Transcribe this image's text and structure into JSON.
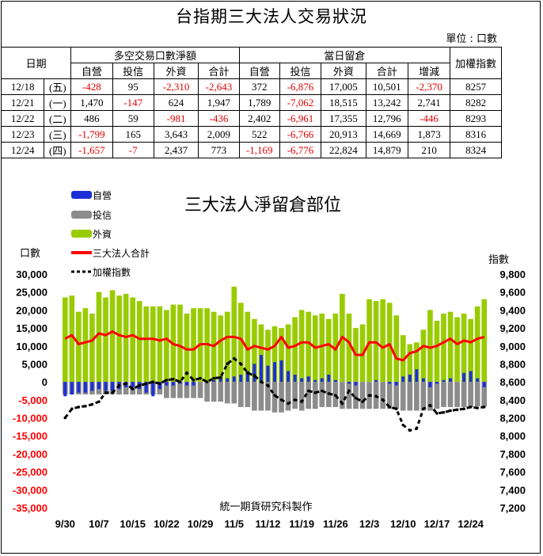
{
  "title": "台指期三大法人交易狀況",
  "unit_label": "單位 : 口數",
  "table": {
    "date_header": "日期",
    "group1_header": "多空交易口數淨額",
    "group2_header": "當日留倉",
    "index_header": "加權指數",
    "sub_headers": [
      "自營",
      "投信",
      "外資",
      "合計",
      "自營",
      "投信",
      "外資",
      "合計",
      "增減"
    ],
    "rows": [
      {
        "date": "12/18",
        "dow": "(五)",
        "cells": [
          "-428",
          "95",
          "-2,310",
          "-2,643",
          "372",
          "-6,876",
          "17,005",
          "10,501",
          "-2,370"
        ],
        "index": "8257"
      },
      {
        "date": "12/21",
        "dow": "(一)",
        "cells": [
          "1,470",
          "-147",
          "624",
          "1,947",
          "1,789",
          "-7,062",
          "18,515",
          "13,242",
          "2,741"
        ],
        "index": "8282"
      },
      {
        "date": "12/22",
        "dow": "(二)",
        "cells": [
          "486",
          "59",
          "-981",
          "-436",
          "2,402",
          "-6,961",
          "17,355",
          "12,796",
          "-446"
        ],
        "index": "8293"
      },
      {
        "date": "12/23",
        "dow": "(三)",
        "cells": [
          "-1,799",
          "165",
          "3,643",
          "2,009",
          "522",
          "-6,766",
          "20,913",
          "14,669",
          "1,873"
        ],
        "index": "8316"
      },
      {
        "date": "12/24",
        "dow": "(四)",
        "cells": [
          "-1,657",
          "-7",
          "2,437",
          "773",
          "-1,169",
          "-6,776",
          "22,824",
          "14,879",
          "210"
        ],
        "index": "8324"
      }
    ]
  },
  "chart_data": {
    "type": "bar",
    "title": "三大法人淨留倉部位",
    "ylabel": "口數",
    "y2label": "指數",
    "credit": "統一期貨研究科製作",
    "legend": [
      "自營",
      "投信",
      "外資",
      "三大法人合計",
      "加權指數"
    ],
    "ylim": [
      -35000,
      30000
    ],
    "y2lim": [
      7200,
      9800
    ],
    "y_ticks": [
      "30,000",
      "25,000",
      "20,000",
      "15,000",
      "10,000",
      "5,000",
      "0",
      "-5,000",
      "-10,000",
      "-15,000",
      "-20,000",
      "-25,000",
      "-30,000",
      "-35,000"
    ],
    "y2_ticks": [
      "9,800",
      "9,600",
      "9,400",
      "9,200",
      "9,000",
      "8,800",
      "8,600",
      "8,400",
      "8,200",
      "8,000",
      "7,800",
      "7,600",
      "7,400",
      "7,200"
    ],
    "x_tick_labels": [
      "9/30",
      "10/7",
      "10/15",
      "10/22",
      "10/29",
      "11/5",
      "11/12",
      "11/19",
      "11/26",
      "12/3",
      "12/10",
      "12/17",
      "12/24"
    ],
    "x_tick_positions": [
      0,
      5,
      10,
      15,
      20,
      25,
      30,
      35,
      40,
      45,
      50,
      55,
      60
    ],
    "colors": {
      "dealer": "#1c2fd6",
      "trust": "#8c8c8c",
      "foreign": "#99cc00",
      "total": "#ff0000",
      "index": "#000000",
      "negative_tick": "#ff0000"
    },
    "series": [
      {
        "name": "自營",
        "values": [
          -4000,
          -3500,
          -3000,
          -3000,
          -2500,
          -2000,
          -2500,
          -2500,
          -2000,
          -1500,
          -1500,
          -2000,
          -3000,
          -4000,
          -2000,
          -1000,
          -1000,
          -500,
          -1000,
          -1000,
          0,
          0,
          500,
          1000,
          1000,
          1500,
          2000,
          3000,
          5000,
          7500,
          4500,
          5500,
          6000,
          3000,
          2000,
          1000,
          1500,
          500,
          1000,
          2000,
          500,
          0,
          -500,
          -1000,
          0,
          0,
          500,
          0,
          -500,
          -1000,
          1500,
          2000,
          3500,
          1000,
          -1500,
          -500,
          500,
          1000,
          0,
          2500,
          3000,
          1000,
          -1500
        ]
      },
      {
        "name": "投信",
        "values": [
          -3500,
          -3500,
          -3500,
          -3500,
          -3500,
          -3500,
          -3500,
          -3500,
          -3500,
          -3500,
          -3500,
          -3500,
          -3500,
          -3500,
          -3500,
          -4500,
          -4500,
          -4500,
          -4500,
          -4500,
          -4500,
          -5500,
          -5500,
          -5500,
          -6000,
          -6000,
          -7000,
          -7000,
          -8000,
          -8000,
          -8000,
          -8500,
          -8500,
          -8000,
          -7500,
          -8000,
          -7500,
          -7500,
          -7000,
          -7000,
          -7000,
          -7500,
          -7500,
          -7500,
          -7500,
          -7500,
          -7500,
          -7500,
          -7500,
          -7500,
          -8000,
          -8000,
          -8000,
          -8000,
          -8000,
          -7500,
          -7000,
          -7000,
          -7000,
          -7000,
          -7000,
          -6800,
          -6800
        ]
      },
      {
        "name": "外資",
        "values": [
          23500,
          24000,
          19500,
          20500,
          19000,
          25000,
          23500,
          25500,
          24000,
          24500,
          23500,
          22500,
          21000,
          21000,
          21000,
          20000,
          21500,
          21500,
          19000,
          20500,
          20500,
          20500,
          19500,
          18500,
          19500,
          26500,
          22000,
          19500,
          17500,
          16000,
          14500,
          15500,
          15000,
          16000,
          18000,
          20000,
          19500,
          18500,
          19000,
          17500,
          19000,
          24500,
          19000,
          15000,
          16000,
          23000,
          22500,
          23000,
          22000,
          18500,
          13000,
          10500,
          11000,
          14500,
          20000,
          17000,
          19000,
          19500,
          18000,
          19000,
          17500,
          21000,
          23000
        ]
      },
      {
        "name": "三大法人合計",
        "values": [
          12000,
          13000,
          10500,
          11000,
          11500,
          13500,
          13000,
          14000,
          13000,
          12500,
          13000,
          12000,
          12000,
          12000,
          11500,
          12000,
          10500,
          10000,
          9000,
          9000,
          10500,
          10500,
          10000,
          11500,
          12500,
          12500,
          12000,
          9000,
          10000,
          9500,
          9000,
          10000,
          12500,
          9500,
          10000,
          11000,
          11000,
          9500,
          10000,
          10500,
          9000,
          12500,
          11000,
          7500,
          7500,
          11000,
          11000,
          9500,
          10500,
          6500,
          6000,
          8000,
          8500,
          10000,
          9500,
          10000,
          11000,
          12000,
          10500,
          11500,
          11000,
          12000,
          12500
        ]
      },
      {
        "name": "加權指數",
        "values": [
          8200,
          8300,
          8320,
          8330,
          8350,
          8380,
          8480,
          8480,
          8560,
          8580,
          8520,
          8560,
          8580,
          8600,
          8580,
          8620,
          8630,
          8600,
          8700,
          8620,
          8640,
          8600,
          8640,
          8650,
          8800,
          8860,
          8800,
          8700,
          8670,
          8600,
          8560,
          8450,
          8400,
          8360,
          8400,
          8380,
          8500,
          8480,
          8500,
          8470,
          8450,
          8360,
          8500,
          8420,
          8380,
          8450,
          8440,
          8400,
          8320,
          8300,
          8120,
          8060,
          8080,
          8300,
          8340,
          8250,
          8260,
          8280,
          8290,
          8300,
          8320,
          8310,
          8320
        ]
      }
    ]
  }
}
